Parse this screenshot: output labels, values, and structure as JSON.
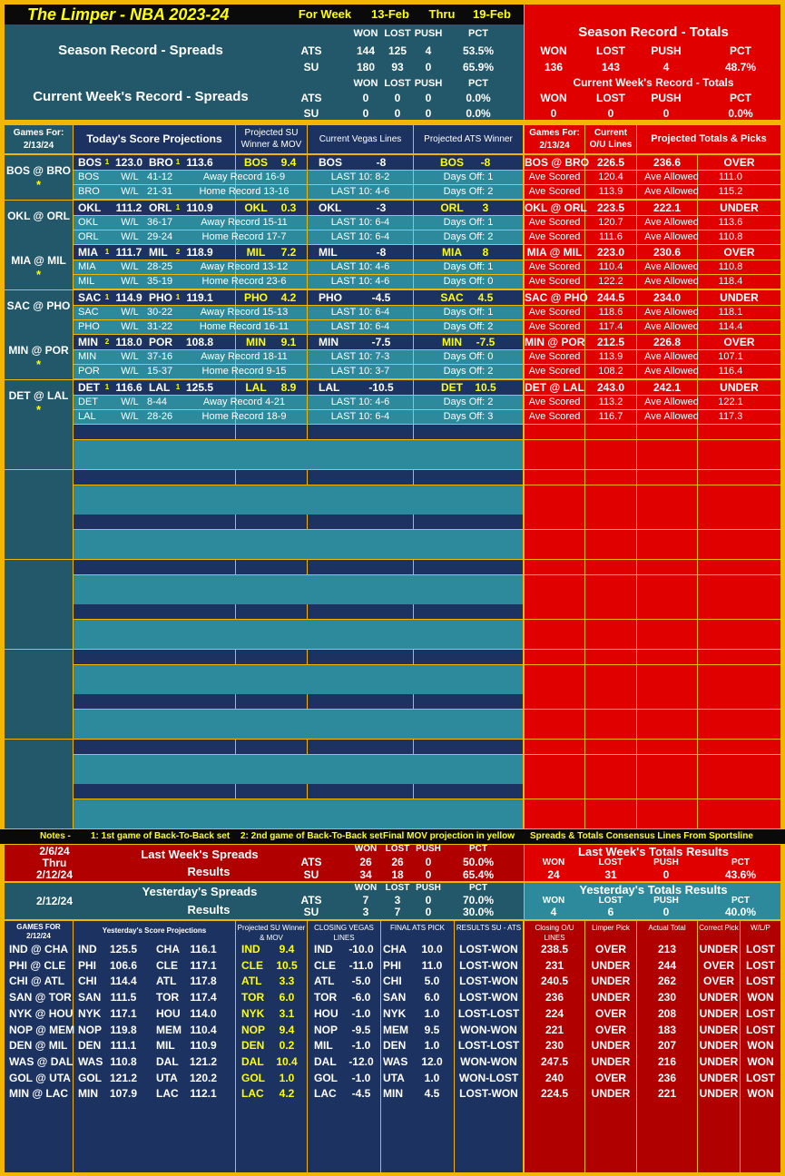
{
  "header": {
    "title": "The Limper - NBA 2023-24",
    "for_week": "For Week",
    "start": "13-Feb",
    "thru": "Thru",
    "end": "19-Feb",
    "season_spreads": "Season Record - Spreads",
    "current_spreads": "Current Week's Record - Spreads",
    "season_totals": "Season Record - Totals",
    "current_totals": "Current Week's Record - Totals",
    "cols": [
      "WON",
      "LOST",
      "PUSH",
      "PCT"
    ],
    "ats_label": "ATS",
    "su_label": "SU",
    "season_ats": [
      "144",
      "125",
      "4",
      "53.5%"
    ],
    "season_su": [
      "180",
      "93",
      "0",
      "65.9%"
    ],
    "week_ats": [
      "0",
      "0",
      "0",
      "0.0%"
    ],
    "week_su": [
      "0",
      "0",
      "0",
      "0.0%"
    ],
    "season_tot": [
      "136",
      "143",
      "4",
      "48.7%"
    ],
    "week_tot": [
      "0",
      "0",
      "0",
      "0.0%"
    ]
  },
  "colheads": {
    "games_for": "Games For:",
    "date": "2/13/24",
    "proj": "Today's Score Projections",
    "su": "Projected SU Winner & MOV",
    "vegas": "Current Vegas Lines",
    "ats": "Projected ATS Winner",
    "games_for2": "Games For:",
    "date2": "2/13/24",
    "ou": "Current O/U Lines",
    "totals": "Projected Totals & Picks"
  },
  "wl": "W/L",
  "games": [
    {
      "matchup": "BOS @ BRO",
      "star": "*",
      "t1": "BOS",
      "b1": "1",
      "s1": "123.0",
      "t2": "BRO",
      "b2": "1",
      "s2": "113.6",
      "su": "BOS",
      "mov": "9.4",
      "vt": "BOS",
      "vl": "-8",
      "at": "BOS",
      "al": "-8",
      "tm": "BOS @ BRO",
      "ou": "226.5",
      "pt": "236.6",
      "pick": "OVER",
      "r1": {
        "t": "BOS",
        "wl": "41-12",
        "rec": "Away Record 16-9",
        "l10": "LAST 10: 8-2",
        "off": "Days Off: 1",
        "sc": "120.4",
        "al": "111.0"
      },
      "r2": {
        "t": "BRO",
        "wl": "21-31",
        "rec": "Home Record 13-16",
        "l10": "LAST 10: 4-6",
        "off": "Days Off: 2",
        "sc": "113.9",
        "al": "115.2"
      }
    },
    {
      "matchup": "OKL @ ORL",
      "star": "",
      "t1": "OKL",
      "b1": "",
      "s1": "111.2",
      "t2": "ORL",
      "b2": "1",
      "s2": "110.9",
      "su": "OKL",
      "mov": "0.3",
      "vt": "OKL",
      "vl": "-3",
      "at": "ORL",
      "al": "3",
      "tm": "OKL @ ORL",
      "ou": "223.5",
      "pt": "222.1",
      "pick": "UNDER",
      "r1": {
        "t": "OKL",
        "wl": "36-17",
        "rec": "Away Record 15-11",
        "l10": "LAST 10: 6-4",
        "off": "Days Off: 1",
        "sc": "120.7",
        "al": "113.6"
      },
      "r2": {
        "t": "ORL",
        "wl": "29-24",
        "rec": "Home Record 17-7",
        "l10": "LAST 10: 6-4",
        "off": "Days Off: 2",
        "sc": "111.6",
        "al": "110.8"
      }
    },
    {
      "matchup": "MIA @ MIL",
      "star": "*",
      "t1": "MIA",
      "b1": "1",
      "s1": "111.7",
      "t2": "MIL",
      "b2": "2",
      "s2": "118.9",
      "su": "MIL",
      "mov": "7.2",
      "vt": "MIL",
      "vl": "-8",
      "at": "MIA",
      "al": "8",
      "tm": "MIA @ MIL",
      "ou": "223.0",
      "pt": "230.6",
      "pick": "OVER",
      "r1": {
        "t": "MIA",
        "wl": "28-25",
        "rec": "Away Record 13-12",
        "l10": "LAST 10: 4-6",
        "off": "Days Off: 1",
        "sc": "110.4",
        "al": "110.8"
      },
      "r2": {
        "t": "MIL",
        "wl": "35-19",
        "rec": "Home Record 23-6",
        "l10": "LAST 10: 4-6",
        "off": "Days Off: 0",
        "sc": "122.2",
        "al": "118.4"
      }
    },
    {
      "matchup": "SAC @ PHO",
      "star": "",
      "t1": "SAC",
      "b1": "1",
      "s1": "114.9",
      "t2": "PHO",
      "b2": "1",
      "s2": "119.1",
      "su": "PHO",
      "mov": "4.2",
      "vt": "PHO",
      "vl": "-4.5",
      "at": "SAC",
      "al": "4.5",
      "tm": "SAC @ PHO",
      "ou": "244.5",
      "pt": "234.0",
      "pick": "UNDER",
      "r1": {
        "t": "SAC",
        "wl": "30-22",
        "rec": "Away Record 15-13",
        "l10": "LAST 10: 6-4",
        "off": "Days Off: 1",
        "sc": "118.6",
        "al": "118.1"
      },
      "r2": {
        "t": "PHO",
        "wl": "31-22",
        "rec": "Home Record 16-11",
        "l10": "LAST 10: 6-4",
        "off": "Days Off: 2",
        "sc": "117.4",
        "al": "114.4"
      }
    },
    {
      "matchup": "MIN @ POR",
      "star": "*",
      "t1": "MIN",
      "b1": "2",
      "s1": "118.0",
      "t2": "POR",
      "b2": "",
      "s2": "108.8",
      "su": "MIN",
      "mov": "9.1",
      "vt": "MIN",
      "vl": "-7.5",
      "at": "MIN",
      "al": "-7.5",
      "tm": "MIN @ POR",
      "ou": "212.5",
      "pt": "226.8",
      "pick": "OVER",
      "r1": {
        "t": "MIN",
        "wl": "37-16",
        "rec": "Away Record 18-11",
        "l10": "LAST 10: 7-3",
        "off": "Days Off: 0",
        "sc": "113.9",
        "al": "107.1"
      },
      "r2": {
        "t": "POR",
        "wl": "15-37",
        "rec": "Home Record 9-15",
        "l10": "LAST 10: 3-7",
        "off": "Days Off: 2",
        "sc": "108.2",
        "al": "116.4"
      }
    },
    {
      "matchup": "DET @ LAL",
      "star": "*",
      "t1": "DET",
      "b1": "1",
      "s1": "116.6",
      "t2": "LAL",
      "b2": "1",
      "s2": "125.5",
      "su": "LAL",
      "mov": "8.9",
      "vt": "LAL",
      "vl": "-10.5",
      "at": "DET",
      "al": "10.5",
      "tm": "DET @ LAL",
      "ou": "243.0",
      "pt": "242.1",
      "pick": "UNDER",
      "r1": {
        "t": "DET",
        "wl": "8-44",
        "rec": "Away Record 4-21",
        "l10": "LAST 10: 4-6",
        "off": "Days Off: 2",
        "sc": "113.2",
        "al": "122.1"
      },
      "r2": {
        "t": "LAL",
        "wl": "28-26",
        "rec": "Home Record 18-9",
        "l10": "LAST 10: 6-4",
        "off": "Days Off: 3",
        "sc": "116.7",
        "al": "117.3"
      }
    }
  ],
  "labels": {
    "ave_scored": "Ave Scored",
    "ave_allowed": "Ave Allowed"
  },
  "notes": {
    "label": "Notes -",
    "n1": "1: 1st game of Back-To-Back set",
    "n2": "2: 2nd game of Back-To-Back set",
    "n3": "Final MOV projection in yellow",
    "n4": "Spreads & Totals Consensus Lines From Sportsline"
  },
  "last_week": {
    "d1": "2/6/24",
    "thru": "Thru",
    "d2": "2/12/24",
    "title": "Last Week's Spreads",
    "results": "Results",
    "ats": [
      "26",
      "26",
      "0",
      "50.0%"
    ],
    "su": [
      "34",
      "18",
      "0",
      "65.4%"
    ],
    "tot_title": "Last Week's Totals Results",
    "tot": [
      "24",
      "31",
      "0",
      "43.6%"
    ]
  },
  "yesterday": {
    "date": "2/12/24",
    "title": "Yesterday's Spreads",
    "results": "Results",
    "ats": [
      "7",
      "3",
      "0",
      "70.0%"
    ],
    "su": [
      "3",
      "7",
      "0",
      "30.0%"
    ],
    "tot_title": "Yesterday's Totals Results",
    "tot": [
      "4",
      "6",
      "0",
      "40.0%"
    ]
  },
  "yheads": {
    "gf": "GAMES FOR",
    "gd": "2/12/24",
    "proj": "Yesterday's Score Projections",
    "su": "Projected SU Winner & MOV",
    "cv": "CLOSING VEGAS LINES",
    "fa": "FINAL ATS PICK",
    "res": "RESULTS SU - ATS",
    "cou": "Closing O/U LINES",
    "lp": "Limper Pick",
    "at": "Actual Total",
    "cp": "Correct Pick",
    "wlp": "W/L/P"
  },
  "yrows": [
    {
      "m": "IND @ CHA",
      "t1": "IND",
      "s1": "125.5",
      "t2": "CHA",
      "s2": "116.1",
      "su": "IND",
      "mov": "9.4",
      "vt": "IND",
      "vl": "-10.0",
      "at": "CHA",
      "al": "10.0",
      "res": "LOST-WON",
      "ou": "238.5",
      "lp": "OVER",
      "act": "213",
      "cp": "UNDER",
      "wlp": "LOST"
    },
    {
      "m": "PHI @ CLE",
      "t1": "PHI",
      "s1": "106.6",
      "t2": "CLE",
      "s2": "117.1",
      "su": "CLE",
      "mov": "10.5",
      "vt": "CLE",
      "vl": "-11.0",
      "at": "PHI",
      "al": "11.0",
      "res": "LOST-WON",
      "ou": "231",
      "lp": "UNDER",
      "act": "244",
      "cp": "OVER",
      "wlp": "LOST"
    },
    {
      "m": "CHI @ ATL",
      "t1": "CHI",
      "s1": "114.4",
      "t2": "ATL",
      "s2": "117.8",
      "su": "ATL",
      "mov": "3.3",
      "vt": "ATL",
      "vl": "-5.0",
      "at": "CHI",
      "al": "5.0",
      "res": "LOST-WON",
      "ou": "240.5",
      "lp": "UNDER",
      "act": "262",
      "cp": "OVER",
      "wlp": "LOST"
    },
    {
      "m": "SAN @ TOR",
      "t1": "SAN",
      "s1": "111.5",
      "t2": "TOR",
      "s2": "117.4",
      "su": "TOR",
      "mov": "6.0",
      "vt": "TOR",
      "vl": "-6.0",
      "at": "SAN",
      "al": "6.0",
      "res": "LOST-WON",
      "ou": "236",
      "lp": "UNDER",
      "act": "230",
      "cp": "UNDER",
      "wlp": "WON"
    },
    {
      "m": "NYK @ HOU",
      "t1": "NYK",
      "s1": "117.1",
      "t2": "HOU",
      "s2": "114.0",
      "su": "NYK",
      "mov": "3.1",
      "vt": "HOU",
      "vl": "-1.0",
      "at": "NYK",
      "al": "1.0",
      "res": "LOST-LOST",
      "ou": "224",
      "lp": "OVER",
      "act": "208",
      "cp": "UNDER",
      "wlp": "LOST"
    },
    {
      "m": "NOP @ MEM",
      "t1": "NOP",
      "s1": "119.8",
      "t2": "MEM",
      "s2": "110.4",
      "su": "NOP",
      "mov": "9.4",
      "vt": "NOP",
      "vl": "-9.5",
      "at": "MEM",
      "al": "9.5",
      "res": "WON-WON",
      "ou": "221",
      "lp": "OVER",
      "act": "183",
      "cp": "UNDER",
      "wlp": "LOST"
    },
    {
      "m": "DEN @ MIL",
      "t1": "DEN",
      "s1": "111.1",
      "t2": "MIL",
      "s2": "110.9",
      "su": "DEN",
      "mov": "0.2",
      "vt": "MIL",
      "vl": "-1.0",
      "at": "DEN",
      "al": "1.0",
      "res": "LOST-LOST",
      "ou": "230",
      "lp": "UNDER",
      "act": "207",
      "cp": "UNDER",
      "wlp": "WON"
    },
    {
      "m": "WAS @ DAL",
      "t1": "WAS",
      "s1": "110.8",
      "t2": "DAL",
      "s2": "121.2",
      "su": "DAL",
      "mov": "10.4",
      "vt": "DAL",
      "vl": "-12.0",
      "at": "WAS",
      "al": "12.0",
      "res": "WON-WON",
      "ou": "247.5",
      "lp": "UNDER",
      "act": "216",
      "cp": "UNDER",
      "wlp": "WON"
    },
    {
      "m": "GOL @ UTA",
      "t1": "GOL",
      "s1": "121.2",
      "t2": "UTA",
      "s2": "120.2",
      "su": "GOL",
      "mov": "1.0",
      "vt": "GOL",
      "vl": "-1.0",
      "at": "UTA",
      "al": "1.0",
      "res": "WON-LOST",
      "ou": "240",
      "lp": "OVER",
      "act": "236",
      "cp": "UNDER",
      "wlp": "LOST"
    },
    {
      "m": "MIN @ LAC",
      "t1": "MIN",
      "s1": "107.9",
      "t2": "LAC",
      "s2": "112.1",
      "su": "LAC",
      "mov": "4.2",
      "vt": "LAC",
      "vl": "-4.5",
      "at": "MIN",
      "al": "4.5",
      "res": "LOST-WON",
      "ou": "224.5",
      "lp": "UNDER",
      "act": "221",
      "cp": "UNDER",
      "wlp": "WON"
    }
  ]
}
